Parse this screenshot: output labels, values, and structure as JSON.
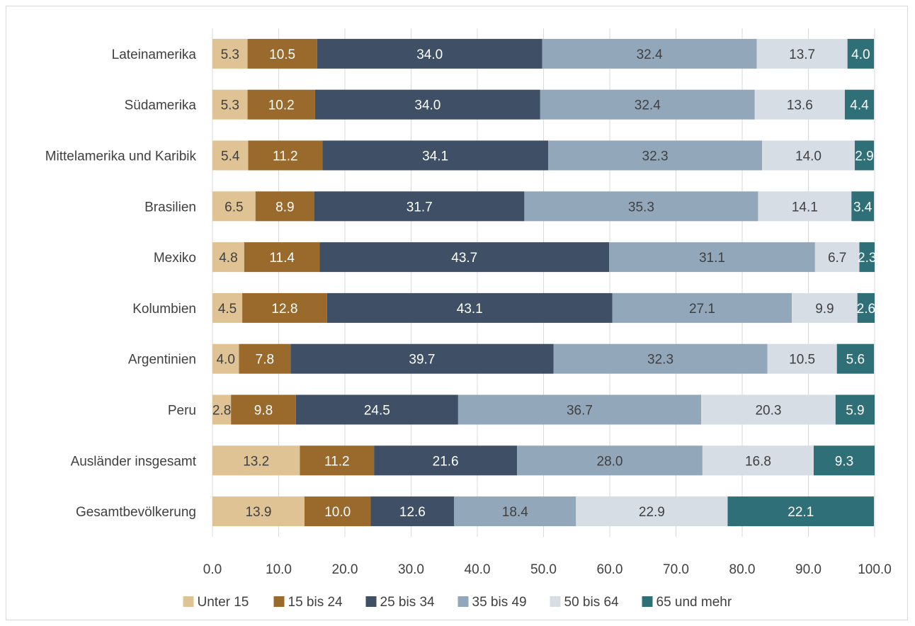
{
  "chart_data": {
    "type": "bar",
    "orientation": "horizontal",
    "stacked": true,
    "title": "",
    "xlabel": "",
    "ylabel": "",
    "xlim": [
      0,
      100
    ],
    "x_ticks": [
      "0.0",
      "10.0",
      "20.0",
      "30.0",
      "40.0",
      "50.0",
      "60.0",
      "70.0",
      "80.0",
      "90.0",
      "100.0"
    ],
    "grid": true,
    "legend_position": "bottom",
    "categories": [
      "Lateinamerika",
      "Südamerika",
      "Mittelamerika und Karibik",
      "Brasilien",
      "Mexiko",
      "Kolumbien",
      "Argentinien",
      "Peru",
      "Ausländer insgesamt",
      "Gesamtbevölkerung"
    ],
    "series": [
      {
        "name": "Unter 15",
        "color": "#dfc394",
        "label_color": "#404040",
        "values": [
          5.3,
          5.3,
          5.4,
          6.5,
          4.8,
          4.5,
          4.0,
          2.8,
          13.2,
          13.9
        ]
      },
      {
        "name": "15 bis 24",
        "color": "#9a6a2c",
        "label_color": "#ffffff",
        "values": [
          10.5,
          10.2,
          11.2,
          8.9,
          11.4,
          12.8,
          7.8,
          9.8,
          11.2,
          10.0
        ]
      },
      {
        "name": "25 bis 34",
        "color": "#3e4f66",
        "label_color": "#ffffff",
        "values": [
          34.0,
          34.0,
          34.1,
          31.7,
          43.7,
          43.1,
          39.7,
          24.5,
          21.6,
          12.6
        ]
      },
      {
        "name": "35 bis 49",
        "color": "#93a7ba",
        "label_color": "#404040",
        "values": [
          32.4,
          32.4,
          32.3,
          35.3,
          31.1,
          27.1,
          32.3,
          36.7,
          28.0,
          18.4
        ]
      },
      {
        "name": "50 bis 64",
        "color": "#d6dde4",
        "label_color": "#404040",
        "values": [
          13.7,
          13.6,
          14.0,
          14.1,
          6.7,
          9.9,
          10.5,
          20.3,
          16.8,
          22.9
        ]
      },
      {
        "name": "65 und mehr",
        "color": "#2f7078",
        "label_color": "#ffffff",
        "values": [
          4.0,
          4.4,
          2.9,
          3.4,
          2.3,
          2.6,
          5.6,
          5.9,
          9.3,
          22.1
        ]
      }
    ],
    "colors": {
      "grid": "#d9d9d9",
      "text": "#404040",
      "border": "#d9d9d9"
    }
  }
}
